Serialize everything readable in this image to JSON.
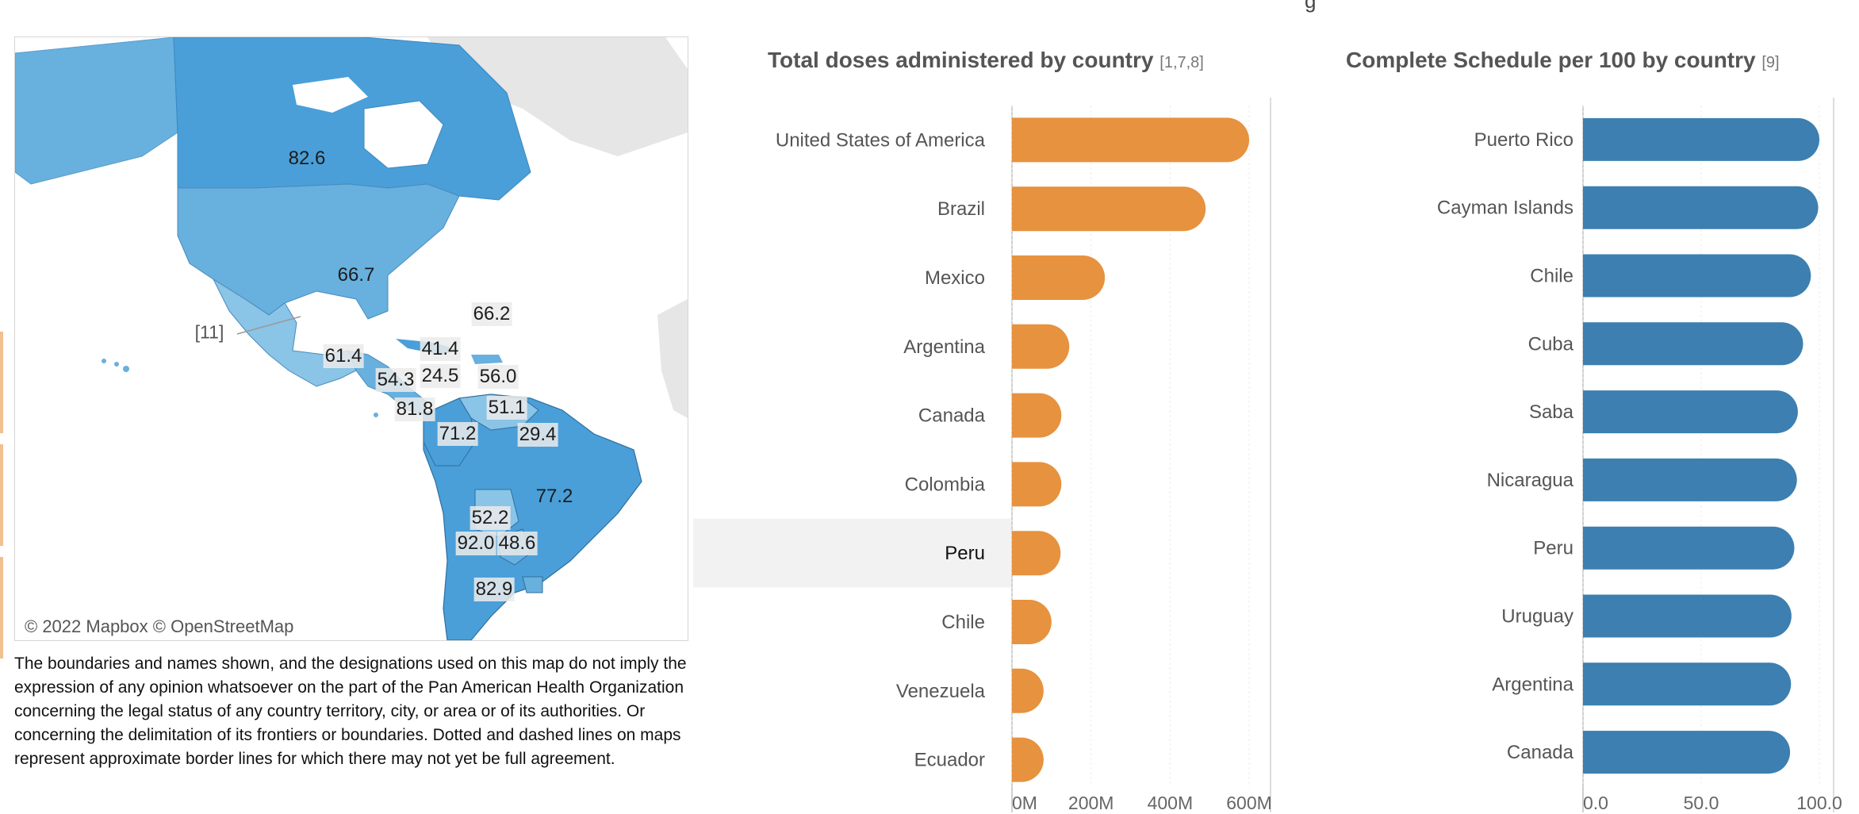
{
  "header_fragment": "g",
  "map": {
    "attribution": "© 2022 Mapbox  © OpenStreetMap",
    "footnote_ref": "[11]",
    "labels": [
      {
        "text": "82.6",
        "style": "clear"
      },
      {
        "text": "66.7",
        "style": "clear"
      },
      {
        "text": "66.2",
        "style": "box"
      },
      {
        "text": "61.4",
        "style": "box"
      },
      {
        "text": "41.4",
        "style": "box"
      },
      {
        "text": "54.3",
        "style": "box"
      },
      {
        "text": "24.5",
        "style": "box"
      },
      {
        "text": "56.0",
        "style": "box"
      },
      {
        "text": "81.8",
        "style": "box"
      },
      {
        "text": "51.1",
        "style": "box"
      },
      {
        "text": "71.2",
        "style": "box"
      },
      {
        "text": "29.4",
        "style": "box"
      },
      {
        "text": "77.2",
        "style": "clear"
      },
      {
        "text": "52.2",
        "style": "box"
      },
      {
        "text": "92.0",
        "style": "box"
      },
      {
        "text": "48.6",
        "style": "box"
      },
      {
        "text": "82.9",
        "style": "box"
      }
    ],
    "colors": {
      "dark": "#4a9fd8",
      "mid": "#68b0de",
      "light": "#8ac4e6",
      "land": "#e6e6e6",
      "border": "#2f6f9e"
    }
  },
  "disclaimer": "The boundaries and names shown, and the designations used on this map do not imply the expression of any opinion whatsoever on the part of the Pan American Health Organization concerning the legal status of any country territory, city, or area or of its authorities. Or concerning the delimitation of its frontiers or boundaries. Dotted and dashed lines on maps represent approximate border lines for which there may not yet be full agreement.",
  "chart_data": [
    {
      "type": "bar",
      "orientation": "horizontal",
      "title": "Total doses administered by country",
      "title_ref": "[1,7,8]",
      "color": "#e6923f",
      "categories": [
        "United States of America",
        "Brazil",
        "Mexico",
        "Argentina",
        "Canada",
        "Colombia",
        "Peru",
        "Chile",
        "Venezuela",
        "Ecuador"
      ],
      "values": [
        600000000,
        490000000,
        235000000,
        145000000,
        125000000,
        125000000,
        123000000,
        100000000,
        80000000,
        80000000
      ],
      "selected": "Peru",
      "xlim": [
        0,
        630000000
      ],
      "ticks": [
        0,
        200000000,
        400000000,
        600000000
      ],
      "tick_labels": [
        "0M",
        "200M",
        "400M",
        "600M"
      ]
    },
    {
      "type": "bar",
      "orientation": "horizontal",
      "title": "Complete Schedule per 100 by country",
      "title_ref": "[9]",
      "color": "#3c7fb0",
      "categories": [
        "Puerto Rico",
        "Cayman Islands",
        "Chile",
        "Cuba",
        "Saba",
        "Nicaragua",
        "Peru",
        "Uruguay",
        "Argentina",
        "Canada"
      ],
      "values": [
        100.0,
        99.5,
        96.4,
        93.1,
        90.9,
        90.5,
        89.4,
        88.2,
        88.0,
        87.6
      ],
      "xlim": [
        0,
        102
      ],
      "ticks": [
        0,
        50,
        100
      ],
      "tick_labels": [
        "0.0",
        "50.0",
        "100.0"
      ]
    }
  ]
}
